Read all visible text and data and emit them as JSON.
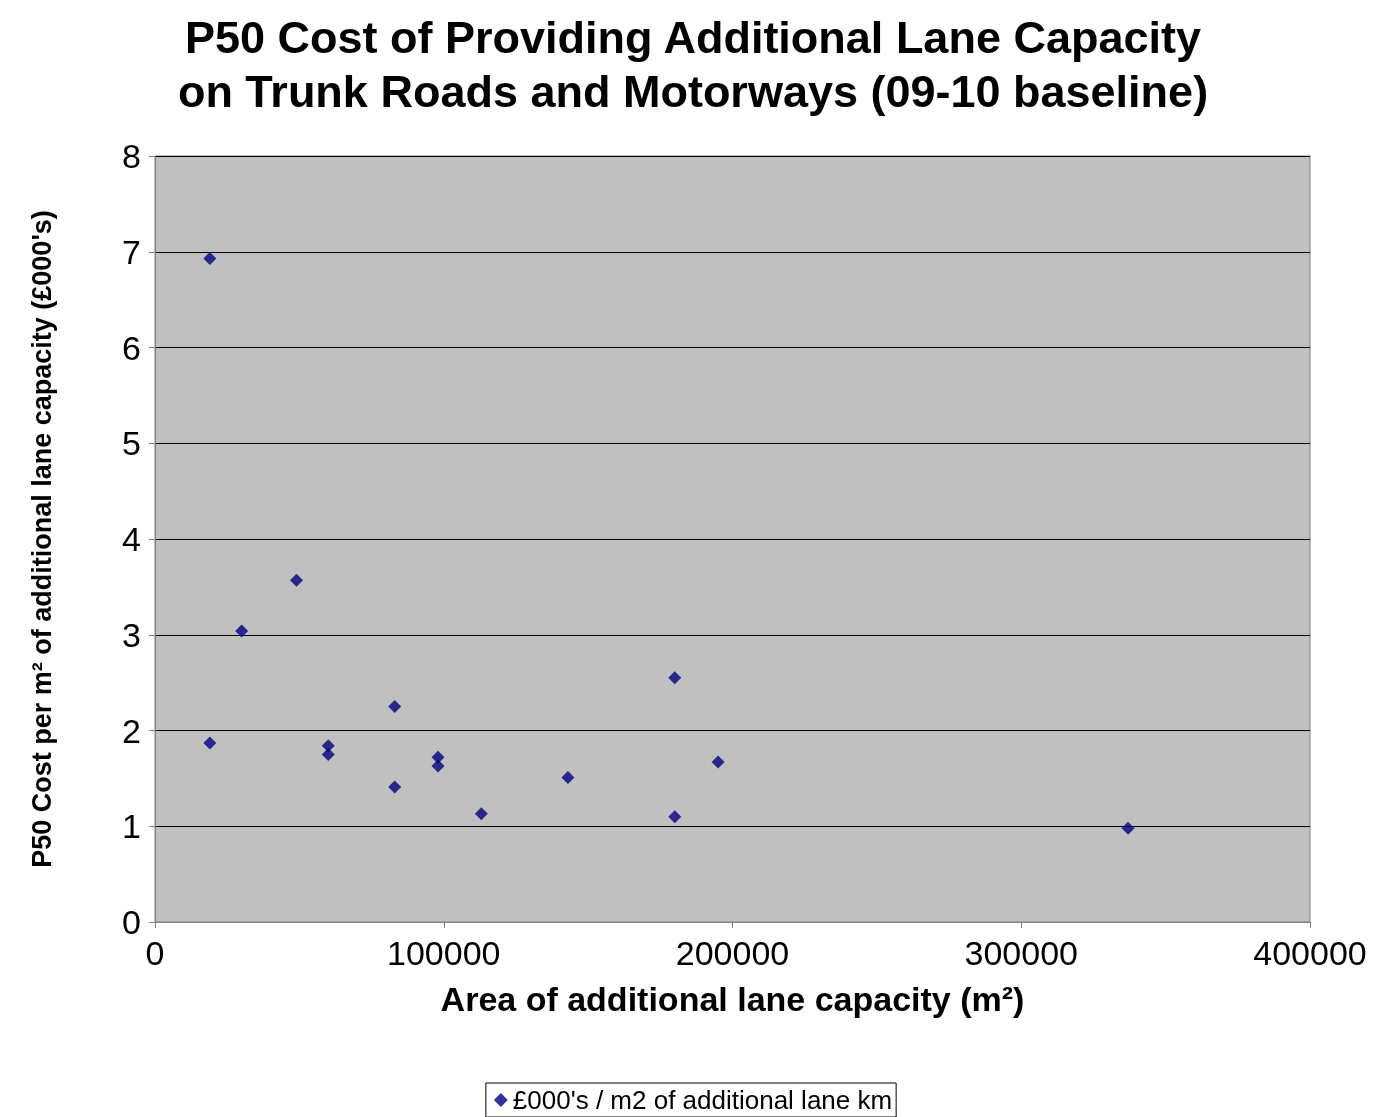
{
  "chart_data": {
    "type": "scatter",
    "title": "P50 Cost of Providing Additional Lane Capacity\non Trunk Roads and Motorways (09-10 baseline)",
    "xlabel": "Area of additional lane capacity (m²)",
    "ylabel": "P50 Cost per m² of additional lane capacity (£000's)",
    "x": [
      19000,
      19000,
      30000,
      49000,
      60000,
      60000,
      83000,
      83000,
      98000,
      98000,
      113000,
      143000,
      180000,
      180000,
      195000,
      337000
    ],
    "series": [
      {
        "name": "£000's / m2 of additional lane km",
        "color": "#000080",
        "values": [
          6.93,
          1.87,
          3.04,
          3.57,
          1.84,
          1.75,
          2.25,
          1.41,
          1.72,
          1.63,
          1.13,
          1.51,
          2.55,
          1.1,
          1.67,
          0.98
        ]
      }
    ],
    "xlim": [
      0,
      400000
    ],
    "xticks": [
      0,
      100000,
      200000,
      300000,
      400000
    ],
    "ylim": [
      0,
      8
    ],
    "yticks": [
      0,
      1,
      2,
      3,
      4,
      5,
      6,
      7,
      8
    ],
    "grid": "y",
    "legend": "bottom",
    "marker": "diamond"
  }
}
